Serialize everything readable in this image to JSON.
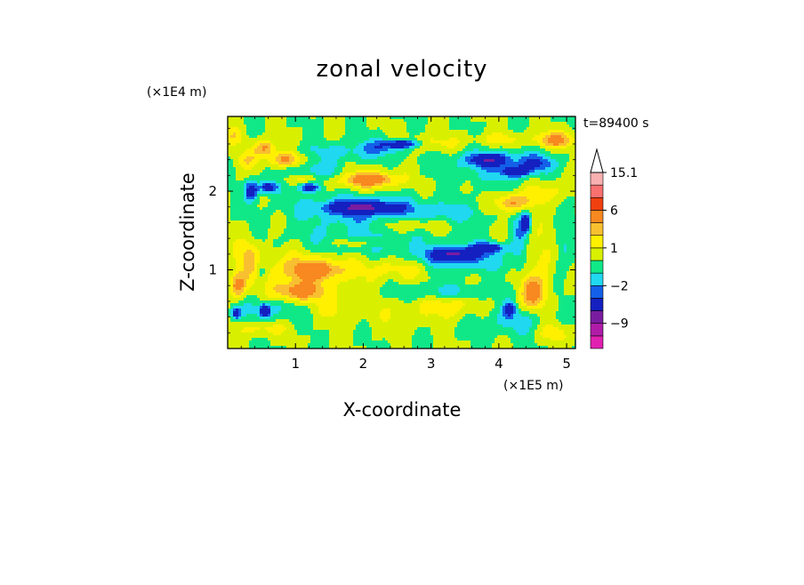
{
  "chart_data": {
    "type": "heatmap",
    "title": "zonal velocity",
    "xlabel": "X-coordinate",
    "ylabel": "Z-coordinate",
    "x_unit": "(×1E5 m)",
    "y_unit": "(×1E4 m)",
    "timestamp": "t=89400 s",
    "xlim": [
      0,
      5.13
    ],
    "ylim": [
      0,
      2.95
    ],
    "x_ticks": [
      1,
      2,
      3,
      4,
      5
    ],
    "y_ticks": [
      1,
      2
    ],
    "grid": false,
    "legend": "colorbar-right",
    "colorbar": {
      "levels": [
        -15,
        -12,
        -9,
        -6,
        -3,
        -2,
        -1,
        0,
        1,
        2,
        3,
        6,
        9,
        12,
        15.1
      ],
      "colors": [
        "#e020b0",
        "#b01ca8",
        "#7a1ca0",
        "#1420c0",
        "#1460e8",
        "#20d8f0",
        "#10e888",
        "#d8f000",
        "#fff000",
        "#f8c030",
        "#f88820",
        "#f04010",
        "#f87070",
        "#f8b0b0"
      ],
      "tick_labels": [
        "15.1",
        "6",
        "1",
        "−2",
        "−9"
      ],
      "tick_values": [
        15.1,
        6,
        1,
        -2,
        -9
      ]
    },
    "features": [
      {
        "x": 2.3,
        "z": 0.48,
        "rx": 0.95,
        "rz": 0.28,
        "v": 0.4
      },
      {
        "x": 1.5,
        "z": 0.5,
        "rx": 0.5,
        "rz": 0.15,
        "v": 1.0
      },
      {
        "x": 3.3,
        "z": 0.55,
        "rx": 0.35,
        "rz": 0.15,
        "v": 1.6
      },
      {
        "x": 2.7,
        "z": 0.45,
        "rx": 0.4,
        "rz": 0.18,
        "v": 0.4
      },
      {
        "x": 1.0,
        "z": 1.0,
        "rx": 0.95,
        "rz": 0.32,
        "v": 1.6
      },
      {
        "x": 1.3,
        "z": 1.0,
        "rx": 0.35,
        "rz": 0.12,
        "v": 3.5
      },
      {
        "x": 1.05,
        "z": 0.72,
        "rx": 0.35,
        "rz": 0.12,
        "v": 3.5
      },
      {
        "x": 2.55,
        "z": 1.02,
        "rx": 0.55,
        "rz": 0.14,
        "v": 1.6
      },
      {
        "x": 3.35,
        "z": 1.15,
        "rx": 0.7,
        "rz": 0.17,
        "v": -2.5
      },
      {
        "x": 3.35,
        "z": 1.2,
        "rx": 0.3,
        "rz": 0.07,
        "v": -4.5
      },
      {
        "x": 3.85,
        "z": 1.28,
        "rx": 0.22,
        "rz": 0.06,
        "v": -4.5
      },
      {
        "x": 3.2,
        "z": 0.72,
        "rx": 0.8,
        "rz": 0.1,
        "v": -1.5
      },
      {
        "x": 1.8,
        "z": 1.36,
        "rx": 0.95,
        "rz": 0.18,
        "v": -1.5
      },
      {
        "x": 1.9,
        "z": 1.35,
        "rx": 0.42,
        "rz": 0.07,
        "v": 1.6
      },
      {
        "x": 2.7,
        "z": 1.58,
        "rx": 0.5,
        "rz": 0.1,
        "v": 1.6
      },
      {
        "x": 3.2,
        "z": 1.72,
        "rx": 0.55,
        "rz": 0.13,
        "v": -1.5
      },
      {
        "x": 1.95,
        "z": 1.78,
        "rx": 0.85,
        "rz": 0.22,
        "v": -2.5
      },
      {
        "x": 2.0,
        "z": 1.79,
        "rx": 0.5,
        "rz": 0.07,
        "v": -4.5
      },
      {
        "x": 2.0,
        "z": 2.12,
        "rx": 0.65,
        "rz": 0.17,
        "v": 1.6
      },
      {
        "x": 2.1,
        "z": 2.15,
        "rx": 0.35,
        "rz": 0.08,
        "v": 3.5
      },
      {
        "x": 1.8,
        "z": 2.5,
        "rx": 0.75,
        "rz": 0.12,
        "v": -1.5
      },
      {
        "x": 2.35,
        "z": 2.58,
        "rx": 0.32,
        "rz": 0.09,
        "v": -2.5
      },
      {
        "x": 2.6,
        "z": 2.6,
        "rx": 0.24,
        "rz": 0.05,
        "v": -4.5
      },
      {
        "x": 2.9,
        "z": 2.6,
        "rx": 0.6,
        "rz": 0.11,
        "v": 1.6
      },
      {
        "x": 1.3,
        "z": 2.25,
        "rx": 0.42,
        "rz": 0.12,
        "v": -2.0
      },
      {
        "x": 1.2,
        "z": 2.05,
        "rx": 0.15,
        "rz": 0.06,
        "v": -4.5
      },
      {
        "x": 0.85,
        "z": 2.4,
        "rx": 0.25,
        "rz": 0.09,
        "v": 3.5
      },
      {
        "x": 1.05,
        "z": 2.15,
        "rx": 0.28,
        "rz": 0.08,
        "v": 1.6
      },
      {
        "x": 0.6,
        "z": 2.05,
        "rx": 0.14,
        "rz": 0.08,
        "v": -4.5
      },
      {
        "x": 0.35,
        "z": 2.0,
        "rx": 0.09,
        "rz": 0.12,
        "v": -4.5
      },
      {
        "x": 0.3,
        "z": 2.4,
        "rx": 0.18,
        "rz": 0.12,
        "v": 1.6
      },
      {
        "x": 0.55,
        "z": 2.55,
        "rx": 0.16,
        "rz": 0.1,
        "v": 3.5
      },
      {
        "x": 0.1,
        "z": 2.7,
        "rx": 0.15,
        "rz": 0.12,
        "v": 1.6
      },
      {
        "x": 0.7,
        "z": 0.5,
        "rx": 0.6,
        "rz": 0.16,
        "v": -1.5
      },
      {
        "x": 0.55,
        "z": 0.48,
        "rx": 0.07,
        "rz": 0.08,
        "v": -4.5
      },
      {
        "x": 0.12,
        "z": 0.45,
        "rx": 0.06,
        "rz": 0.06,
        "v": -4.5
      },
      {
        "x": 0.5,
        "z": 0.25,
        "rx": 0.35,
        "rz": 0.1,
        "v": 1.6
      },
      {
        "x": 0.15,
        "z": 0.8,
        "rx": 0.12,
        "rz": 0.15,
        "v": 3.5
      },
      {
        "x": 0.5,
        "z": 1.0,
        "rx": 0.08,
        "rz": 0.22,
        "v": -1.5
      },
      {
        "x": 0.3,
        "z": 1.2,
        "rx": 0.18,
        "rz": 0.22,
        "v": 1.6
      },
      {
        "x": 3.95,
        "z": 2.35,
        "rx": 0.75,
        "rz": 0.24,
        "v": -1.8
      },
      {
        "x": 3.85,
        "z": 2.4,
        "rx": 0.26,
        "rz": 0.07,
        "v": -4.5
      },
      {
        "x": 4.25,
        "z": 2.25,
        "rx": 0.18,
        "rz": 0.06,
        "v": -4.5
      },
      {
        "x": 4.55,
        "z": 2.35,
        "rx": 0.25,
        "rz": 0.1,
        "v": -2.5
      },
      {
        "x": 4.05,
        "z": 2.65,
        "rx": 0.45,
        "rz": 0.1,
        "v": 1.6
      },
      {
        "x": 4.85,
        "z": 2.65,
        "rx": 0.3,
        "rz": 0.1,
        "v": 3.5
      },
      {
        "x": 4.7,
        "z": 2.0,
        "rx": 0.3,
        "rz": 0.16,
        "v": 1.6
      },
      {
        "x": 4.2,
        "z": 1.85,
        "rx": 0.25,
        "rz": 0.12,
        "v": 3.5
      },
      {
        "x": 4.3,
        "z": 1.4,
        "rx": 0.12,
        "rz": 0.38,
        "v": -1.8
      },
      {
        "x": 4.4,
        "z": 1.6,
        "rx": 0.06,
        "rz": 0.12,
        "v": -4.5
      },
      {
        "x": 4.6,
        "z": 1.15,
        "rx": 0.22,
        "rz": 0.4,
        "v": 1.6
      },
      {
        "x": 4.5,
        "z": 0.7,
        "rx": 0.2,
        "rz": 0.2,
        "v": 3.5
      },
      {
        "x": 4.95,
        "z": 1.3,
        "rx": 0.12,
        "rz": 0.3,
        "v": -1.5
      },
      {
        "x": 4.2,
        "z": 0.35,
        "rx": 0.45,
        "rz": 0.18,
        "v": -1.5
      },
      {
        "x": 4.15,
        "z": 0.5,
        "rx": 0.08,
        "rz": 0.08,
        "v": -4.5
      },
      {
        "x": 4.8,
        "z": 0.2,
        "rx": 0.25,
        "rz": 0.12,
        "v": 1.6
      }
    ]
  }
}
